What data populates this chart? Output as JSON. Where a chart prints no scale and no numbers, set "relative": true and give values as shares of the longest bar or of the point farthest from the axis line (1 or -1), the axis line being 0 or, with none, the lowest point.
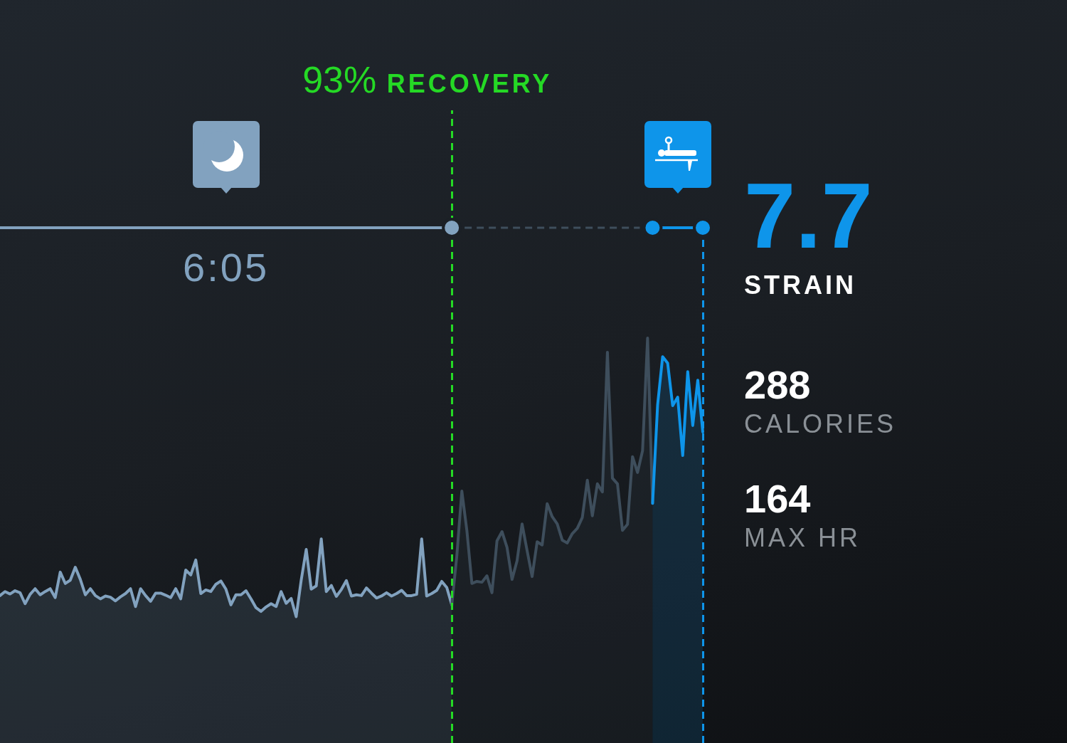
{
  "chart_data": {
    "type": "area",
    "relative": true,
    "categories": [
      null,
      null,
      null,
      null,
      null,
      null,
      null,
      null,
      null,
      null,
      null,
      null,
      null,
      null,
      null,
      null,
      null,
      null,
      null,
      null,
      null,
      null,
      null,
      null,
      null,
      null,
      null,
      null,
      null,
      null,
      null,
      null,
      null,
      null,
      null,
      null,
      null,
      null,
      null,
      null,
      null,
      null,
      null,
      null,
      null,
      null,
      null,
      null,
      null,
      null,
      null,
      null,
      null,
      null,
      null,
      null,
      null,
      null,
      null,
      null,
      null,
      null,
      null,
      null,
      null,
      null,
      null,
      null,
      null,
      null,
      null,
      null,
      null,
      null,
      null,
      null,
      null,
      null,
      null,
      null,
      null,
      null,
      null,
      null,
      null,
      null,
      null,
      null,
      null,
      null,
      null,
      null,
      null,
      null,
      null,
      null,
      null,
      null,
      null,
      null,
      null,
      null,
      null,
      null,
      null,
      null,
      null,
      null,
      null,
      null,
      null,
      null,
      null,
      null,
      null,
      null,
      null,
      null,
      null,
      null,
      null,
      null,
      null,
      null,
      null,
      null,
      null,
      null,
      null,
      null,
      null,
      null,
      null,
      null,
      null,
      null,
      null,
      null,
      null,
      null,
      null
    ],
    "series": [
      {
        "color": "#82a2bf",
        "values": [
          0.364,
          0.374,
          0.368,
          0.376,
          0.371,
          0.344,
          0.367,
          0.381,
          0.366,
          0.374,
          0.381,
          0.359,
          0.422,
          0.394,
          0.402,
          0.434,
          0.404,
          0.366,
          0.381,
          0.364,
          0.356,
          0.363,
          0.36,
          0.351,
          0.361,
          0.369,
          0.381,
          0.337,
          0.381,
          0.364,
          0.35,
          0.37,
          0.37,
          0.365,
          0.359,
          0.381,
          0.356,
          0.427,
          0.415,
          0.452,
          0.369,
          0.378,
          0.374,
          0.392,
          0.4,
          0.38,
          0.341,
          0.366,
          0.366,
          0.376,
          0.356,
          0.334,
          0.325,
          0.336,
          0.344,
          0.337,
          0.374,
          0.345,
          0.357,
          0.312,
          0.402,
          0.478,
          0.38,
          0.388,
          0.504,
          0.374,
          0.389,
          0.362,
          0.379,
          0.401,
          0.363,
          0.366,
          0.364,
          0.383,
          0.37,
          0.358,
          0.363,
          0.371,
          0.363,
          0.369,
          0.377,
          0.364,
          0.364,
          0.367,
          0.504,
          0.363,
          0.369,
          0.377,
          0.399,
          0.384,
          0.341,
          null,
          null,
          null,
          null,
          null,
          null,
          null,
          null,
          null,
          null,
          null,
          null,
          null,
          null,
          null,
          null,
          null,
          null,
          null,
          null,
          null,
          null,
          null,
          null,
          null,
          null,
          null,
          null,
          null,
          null,
          null,
          null,
          null,
          null,
          null,
          null,
          null,
          null,
          null,
          null,
          null,
          null,
          null,
          null,
          null,
          null,
          null,
          null,
          null,
          null
        ]
      },
      {
        "color": "#3e4e5c",
        "values": [
          null,
          null,
          null,
          null,
          null,
          null,
          null,
          null,
          null,
          null,
          null,
          null,
          null,
          null,
          null,
          null,
          null,
          null,
          null,
          null,
          null,
          null,
          null,
          null,
          null,
          null,
          null,
          null,
          null,
          null,
          null,
          null,
          null,
          null,
          null,
          null,
          null,
          null,
          null,
          null,
          null,
          null,
          null,
          null,
          null,
          null,
          null,
          null,
          null,
          null,
          null,
          null,
          null,
          null,
          null,
          null,
          null,
          null,
          null,
          null,
          null,
          null,
          null,
          null,
          null,
          null,
          null,
          null,
          null,
          null,
          null,
          null,
          null,
          null,
          null,
          null,
          null,
          null,
          null,
          null,
          null,
          null,
          null,
          null,
          null,
          null,
          null,
          null,
          null,
          null,
          0.341,
          0.462,
          0.622,
          0.525,
          0.394,
          0.399,
          0.397,
          0.413,
          0.371,
          0.499,
          0.522,
          0.483,
          0.404,
          0.45,
          0.541,
          0.475,
          0.411,
          0.497,
          0.489,
          0.591,
          0.559,
          0.541,
          0.501,
          0.494,
          0.517,
          0.53,
          0.557,
          0.649,
          0.561,
          0.64,
          0.62,
          0.965,
          0.654,
          0.64,
          0.525,
          0.54,
          0.707,
          0.668,
          0.722,
          1,
          0.592,
          null,
          null,
          null,
          null,
          null,
          null,
          null,
          null,
          null,
          null
        ]
      },
      {
        "color": "#0e95ea",
        "values": [
          null,
          null,
          null,
          null,
          null,
          null,
          null,
          null,
          null,
          null,
          null,
          null,
          null,
          null,
          null,
          null,
          null,
          null,
          null,
          null,
          null,
          null,
          null,
          null,
          null,
          null,
          null,
          null,
          null,
          null,
          null,
          null,
          null,
          null,
          null,
          null,
          null,
          null,
          null,
          null,
          null,
          null,
          null,
          null,
          null,
          null,
          null,
          null,
          null,
          null,
          null,
          null,
          null,
          null,
          null,
          null,
          null,
          null,
          null,
          null,
          null,
          null,
          null,
          null,
          null,
          null,
          null,
          null,
          null,
          null,
          null,
          null,
          null,
          null,
          null,
          null,
          null,
          null,
          null,
          null,
          null,
          null,
          null,
          null,
          null,
          null,
          null,
          null,
          null,
          null,
          null,
          null,
          null,
          null,
          null,
          null,
          null,
          null,
          null,
          null,
          null,
          null,
          null,
          null,
          null,
          null,
          null,
          null,
          null,
          null,
          null,
          null,
          null,
          null,
          null,
          null,
          null,
          null,
          null,
          null,
          null,
          null,
          null,
          null,
          null,
          null,
          null,
          null,
          null,
          null,
          0.592,
          0.835,
          0.954,
          0.938,
          0.833,
          0.854,
          0.71,
          0.917,
          0.784,
          0.896,
          0.768
        ]
      }
    ],
    "annotations": [
      "93% RECOVERY",
      "6:05",
      "7.7",
      "STRAIN",
      "288",
      "CALORIES",
      "164",
      "MAX HR"
    ]
  }
}
